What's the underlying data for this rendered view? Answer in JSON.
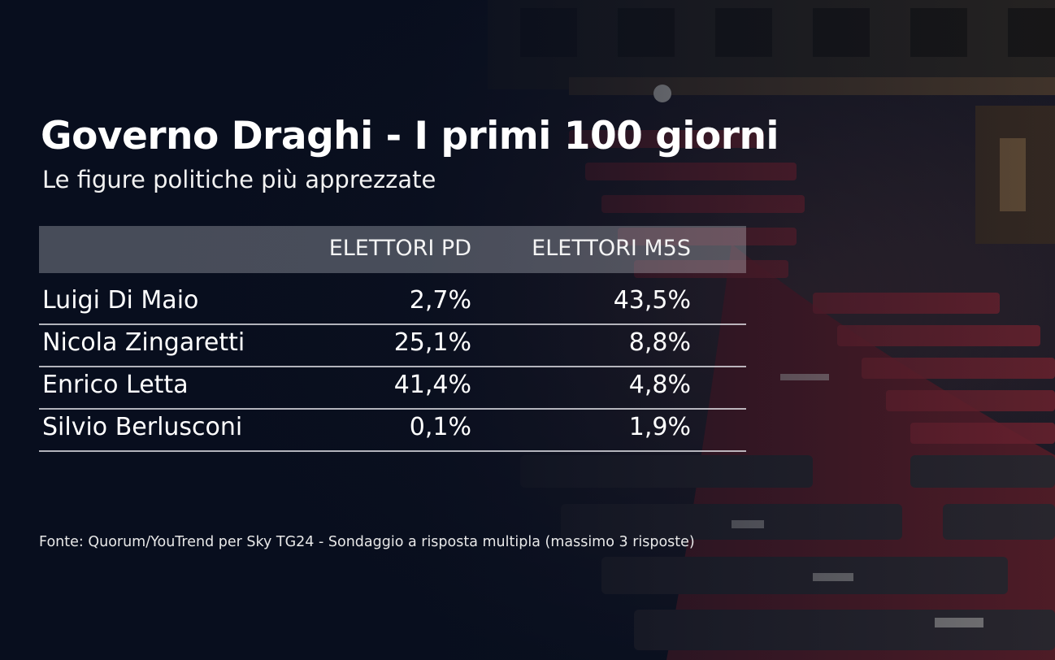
{
  "title": "Governo Draghi - I primi 100 giorni",
  "subtitle": "Le figure politiche più apprezzate",
  "source": "Fonte: Quorum/YouTrend per Sky TG24 - Sondaggio a risposta multipla (massimo 3 risposte)",
  "colors": {
    "background": "#0b1220",
    "text": "#ffffff",
    "header_band": "#b9bcc4",
    "seats": "#7a2530"
  },
  "chart_data": {
    "type": "table",
    "title": "Governo Draghi - I primi 100 giorni",
    "subtitle": "Le figure politiche più apprezzate",
    "columns": [
      "ELETTORI PD",
      "ELETTORI M5S"
    ],
    "rows": [
      {
        "name": "Luigi Di Maio",
        "pd": "2,7%",
        "m5s": "43,5%"
      },
      {
        "name": "Nicola Zingaretti",
        "pd": "25,1%",
        "m5s": "8,8%"
      },
      {
        "name": "Enrico Letta",
        "pd": "41,4%",
        "m5s": "4,8%"
      },
      {
        "name": "Silvio Berlusconi",
        "pd": "0,1%",
        "m5s": "1,9%"
      }
    ]
  }
}
